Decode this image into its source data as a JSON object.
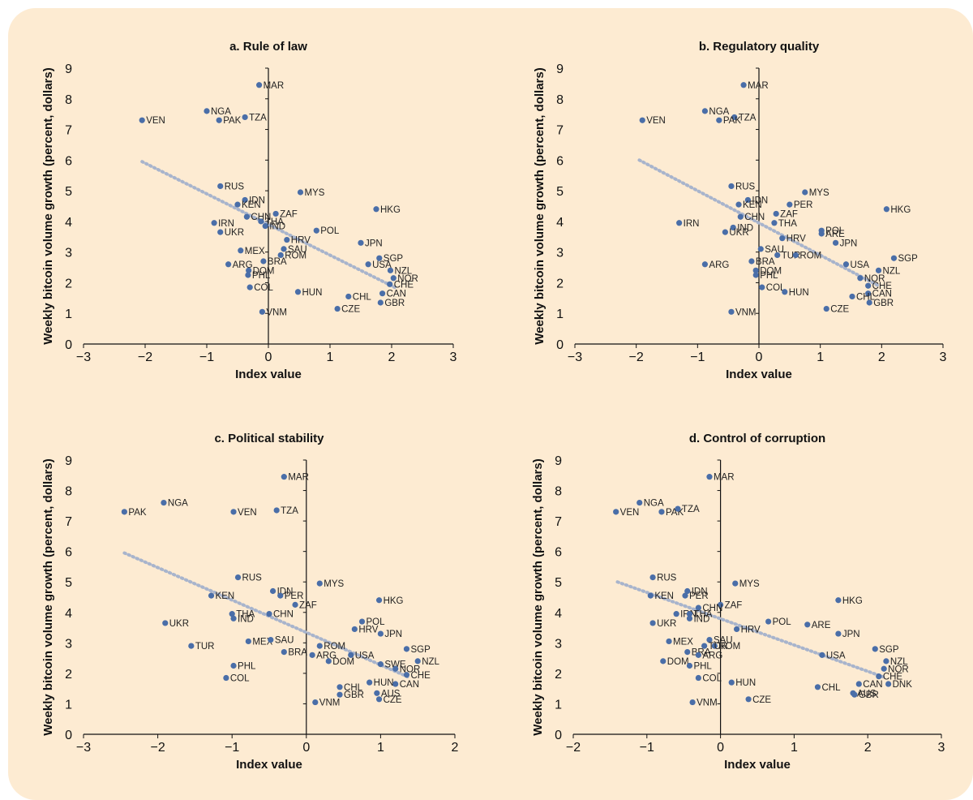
{
  "chart_data": [
    {
      "type": "scatter",
      "title": "a. Rule of law",
      "xlabel": "Index value",
      "ylabel": "Weekly bitcoin volume growth (percent, dollars)",
      "xlim": [
        -3,
        3
      ],
      "ylim": [
        0,
        9
      ],
      "xticks": [
        "−3",
        "−2",
        "−1",
        "0",
        "1",
        "2",
        "3"
      ],
      "yticks": [
        "0",
        "1",
        "2",
        "3",
        "4",
        "5",
        "6",
        "7",
        "8",
        "9"
      ],
      "trendline": [
        [
          -2.05,
          5.95
        ],
        [
          2.05,
          1.85
        ]
      ],
      "points": [
        {
          "label": "MAR",
          "x": -0.15,
          "y": 8.45
        },
        {
          "label": "NGA",
          "x": -1.0,
          "y": 7.6
        },
        {
          "label": "PAK",
          "x": -0.8,
          "y": 7.3
        },
        {
          "label": "TZA",
          "x": -0.38,
          "y": 7.4
        },
        {
          "label": "VEN",
          "x": -2.05,
          "y": 7.3
        },
        {
          "label": "RUS",
          "x": -0.78,
          "y": 5.15
        },
        {
          "label": "MYS",
          "x": 0.52,
          "y": 4.95
        },
        {
          "label": "IDN",
          "x": -0.38,
          "y": 4.7
        },
        {
          "label": "KEN",
          "x": -0.5,
          "y": 4.55
        },
        {
          "label": "HKG",
          "x": 1.75,
          "y": 4.4
        },
        {
          "label": "ZAF",
          "x": 0.12,
          "y": 4.25
        },
        {
          "label": "CHN",
          "x": -0.35,
          "y": 4.15
        },
        {
          "label": "THA",
          "x": -0.12,
          "y": 4.0
        },
        {
          "label": "IRN",
          "x": -0.88,
          "y": 3.95
        },
        {
          "label": "IND",
          "x": -0.05,
          "y": 3.85
        },
        {
          "label": "POL",
          "x": 0.78,
          "y": 3.7
        },
        {
          "label": "UKR",
          "x": -0.78,
          "y": 3.65
        },
        {
          "label": "HRV",
          "x": 0.3,
          "y": 3.4
        },
        {
          "label": "JPN",
          "x": 1.5,
          "y": 3.3
        },
        {
          "label": "MEX",
          "x": -0.45,
          "y": 3.05
        },
        {
          "label": "SAU",
          "x": 0.25,
          "y": 3.1
        },
        {
          "label": "ROM",
          "x": 0.2,
          "y": 2.9
        },
        {
          "label": "SGP",
          "x": 1.8,
          "y": 2.8
        },
        {
          "label": "BRA",
          "x": -0.08,
          "y": 2.7
        },
        {
          "label": "USA",
          "x": 1.62,
          "y": 2.6
        },
        {
          "label": "ARG",
          "x": -0.65,
          "y": 2.6
        },
        {
          "label": "NZL",
          "x": 1.98,
          "y": 2.4
        },
        {
          "label": "DOM",
          "x": -0.32,
          "y": 2.4
        },
        {
          "label": "PHL",
          "x": -0.33,
          "y": 2.25
        },
        {
          "label": "NOR",
          "x": 2.03,
          "y": 2.15
        },
        {
          "label": "CHE",
          "x": 1.97,
          "y": 1.95
        },
        {
          "label": "COL",
          "x": -0.3,
          "y": 1.85
        },
        {
          "label": "HUN",
          "x": 0.48,
          "y": 1.7
        },
        {
          "label": "CAN",
          "x": 1.85,
          "y": 1.65
        },
        {
          "label": "CHL",
          "x": 1.3,
          "y": 1.55
        },
        {
          "label": "GBR",
          "x": 1.82,
          "y": 1.35
        },
        {
          "label": "CZE",
          "x": 1.12,
          "y": 1.15
        },
        {
          "label": "VNM",
          "x": -0.1,
          "y": 1.05
        }
      ]
    },
    {
      "type": "scatter",
      "title": "b. Regulatory quality",
      "xlabel": "Index value",
      "ylabel": "Weekly bitcoin volume growth (percent, dollars)",
      "xlim": [
        -3,
        3
      ],
      "ylim": [
        0,
        9
      ],
      "xticks": [
        "−3",
        "−2",
        "−1",
        "0",
        "1",
        "2",
        "3"
      ],
      "yticks": [
        "0",
        "1",
        "2",
        "3",
        "4",
        "5",
        "6",
        "7",
        "8",
        "9"
      ],
      "trendline": [
        [
          -1.95,
          6.0
        ],
        [
          1.95,
          1.9
        ]
      ],
      "points": [
        {
          "label": "MAR",
          "x": -0.25,
          "y": 8.45
        },
        {
          "label": "NGA",
          "x": -0.88,
          "y": 7.6
        },
        {
          "label": "TZA",
          "x": -0.4,
          "y": 7.4
        },
        {
          "label": "PAK",
          "x": -0.65,
          "y": 7.3
        },
        {
          "label": "VEN",
          "x": -1.9,
          "y": 7.3
        },
        {
          "label": "RUS",
          "x": -0.45,
          "y": 5.15
        },
        {
          "label": "MYS",
          "x": 0.75,
          "y": 4.95
        },
        {
          "label": "IDN",
          "x": -0.18,
          "y": 4.7
        },
        {
          "label": "KEN",
          "x": -0.33,
          "y": 4.55
        },
        {
          "label": "PER",
          "x": 0.5,
          "y": 4.55
        },
        {
          "label": "HKG",
          "x": 2.08,
          "y": 4.4
        },
        {
          "label": "ZAF",
          "x": 0.28,
          "y": 4.25
        },
        {
          "label": "CHN",
          "x": -0.3,
          "y": 4.15
        },
        {
          "label": "THA",
          "x": 0.25,
          "y": 3.95
        },
        {
          "label": "IRN",
          "x": -1.3,
          "y": 3.95
        },
        {
          "label": "IND",
          "x": -0.42,
          "y": 3.8
        },
        {
          "label": "POL",
          "x": 1.02,
          "y": 3.7
        },
        {
          "label": "ARE",
          "x": 1.02,
          "y": 3.6
        },
        {
          "label": "UKR",
          "x": -0.55,
          "y": 3.65
        },
        {
          "label": "HRV",
          "x": 0.38,
          "y": 3.45
        },
        {
          "label": "JPN",
          "x": 1.25,
          "y": 3.3
        },
        {
          "label": "SAU",
          "x": 0.03,
          "y": 3.1
        },
        {
          "label": "TUR",
          "x": 0.3,
          "y": 2.9
        },
        {
          "label": "ROM",
          "x": 0.6,
          "y": 2.9
        },
        {
          "label": "SGP",
          "x": 2.2,
          "y": 2.8
        },
        {
          "label": "BRA",
          "x": -0.12,
          "y": 2.7
        },
        {
          "label": "USA",
          "x": 1.42,
          "y": 2.6
        },
        {
          "label": "ARG",
          "x": -0.88,
          "y": 2.6
        },
        {
          "label": "NZL",
          "x": 1.95,
          "y": 2.4
        },
        {
          "label": "DOM",
          "x": -0.05,
          "y": 2.4
        },
        {
          "label": "PHL",
          "x": -0.05,
          "y": 2.25
        },
        {
          "label": "NOR",
          "x": 1.65,
          "y": 2.15
        },
        {
          "label": "CHE",
          "x": 1.78,
          "y": 1.9
        },
        {
          "label": "COL",
          "x": 0.05,
          "y": 1.85
        },
        {
          "label": "HUN",
          "x": 0.42,
          "y": 1.7
        },
        {
          "label": "CAN",
          "x": 1.78,
          "y": 1.65
        },
        {
          "label": "CHL",
          "x": 1.52,
          "y": 1.55
        },
        {
          "label": "GBR",
          "x": 1.8,
          "y": 1.35
        },
        {
          "label": "CZE",
          "x": 1.1,
          "y": 1.15
        },
        {
          "label": "VNM",
          "x": -0.45,
          "y": 1.05
        }
      ]
    },
    {
      "type": "scatter",
      "title": "c. Political stability",
      "xlabel": "Index value",
      "ylabel": "Weekly bitcoin volume growth (percent, dollars)",
      "xlim": [
        -3,
        2
      ],
      "ylim": [
        0,
        9
      ],
      "xticks": [
        "−3",
        "−2",
        "−1",
        "0",
        "1",
        "2"
      ],
      "yticks": [
        "0",
        "1",
        "2",
        "3",
        "4",
        "5",
        "6",
        "7",
        "8",
        "9"
      ],
      "trendline": [
        [
          -2.45,
          5.95
        ],
        [
          1.4,
          1.85
        ]
      ],
      "points": [
        {
          "label": "MAR",
          "x": -0.3,
          "y": 8.45
        },
        {
          "label": "NGA",
          "x": -1.92,
          "y": 7.6
        },
        {
          "label": "PAK",
          "x": -2.45,
          "y": 7.3
        },
        {
          "label": "VEN",
          "x": -0.98,
          "y": 7.3
        },
        {
          "label": "TZA",
          "x": -0.4,
          "y": 7.35
        },
        {
          "label": "RUS",
          "x": -0.92,
          "y": 5.15
        },
        {
          "label": "MYS",
          "x": 0.18,
          "y": 4.95
        },
        {
          "label": "IDN",
          "x": -0.45,
          "y": 4.7
        },
        {
          "label": "KEN",
          "x": -1.28,
          "y": 4.55
        },
        {
          "label": "PER",
          "x": -0.35,
          "y": 4.55
        },
        {
          "label": "HKG",
          "x": 0.98,
          "y": 4.4
        },
        {
          "label": "ZAF",
          "x": -0.15,
          "y": 4.25
        },
        {
          "label": "THA",
          "x": -1.0,
          "y": 3.95
        },
        {
          "label": "CHN",
          "x": -0.5,
          "y": 3.95
        },
        {
          "label": "IND",
          "x": -0.98,
          "y": 3.8
        },
        {
          "label": "POL",
          "x": 0.75,
          "y": 3.7
        },
        {
          "label": "UKR",
          "x": -1.9,
          "y": 3.65
        },
        {
          "label": "HRV",
          "x": 0.65,
          "y": 3.45
        },
        {
          "label": "JPN",
          "x": 1.0,
          "y": 3.3
        },
        {
          "label": "MEX",
          "x": -0.78,
          "y": 3.05
        },
        {
          "label": "SAU",
          "x": -0.48,
          "y": 3.1
        },
        {
          "label": "TUR",
          "x": -1.55,
          "y": 2.9
        },
        {
          "label": "ROM",
          "x": 0.18,
          "y": 2.9
        },
        {
          "label": "SGP",
          "x": 1.35,
          "y": 2.8
        },
        {
          "label": "BRA",
          "x": -0.3,
          "y": 2.7
        },
        {
          "label": "ARG",
          "x": 0.08,
          "y": 2.6
        },
        {
          "label": "USA",
          "x": 0.6,
          "y": 2.6
        },
        {
          "label": "NZL",
          "x": 1.5,
          "y": 2.4
        },
        {
          "label": "DOM",
          "x": 0.3,
          "y": 2.4
        },
        {
          "label": "SWE",
          "x": 1.0,
          "y": 2.3
        },
        {
          "label": "PHL",
          "x": -0.98,
          "y": 2.25
        },
        {
          "label": "NOR",
          "x": 1.2,
          "y": 2.15
        },
        {
          "label": "CHE",
          "x": 1.35,
          "y": 1.95
        },
        {
          "label": "COL",
          "x": -1.08,
          "y": 1.85
        },
        {
          "label": "HUN",
          "x": 0.85,
          "y": 1.7
        },
        {
          "label": "CAN",
          "x": 1.2,
          "y": 1.65
        },
        {
          "label": "CHL",
          "x": 0.45,
          "y": 1.55
        },
        {
          "label": "AUS",
          "x": 0.95,
          "y": 1.35
        },
        {
          "label": "GBR",
          "x": 0.45,
          "y": 1.3
        },
        {
          "label": "CZE",
          "x": 0.98,
          "y": 1.15
        },
        {
          "label": "VNM",
          "x": 0.12,
          "y": 1.05
        }
      ]
    },
    {
      "type": "scatter",
      "title": "d. Control of corruption",
      "xlabel": "Index value",
      "ylabel": "Weekly bitcoin volume growth (percent, dollars)",
      "xlim": [
        -2,
        3
      ],
      "ylim": [
        0,
        9
      ],
      "xticks": [
        "−2",
        "−1",
        "0",
        "1",
        "2",
        "3"
      ],
      "yticks": [
        "0",
        "1",
        "2",
        "3",
        "4",
        "5",
        "6",
        "7",
        "8",
        "9"
      ],
      "trendline": [
        [
          -1.4,
          5.0
        ],
        [
          2.25,
          1.85
        ]
      ],
      "points": [
        {
          "label": "MAR",
          "x": -0.15,
          "y": 8.45
        },
        {
          "label": "NGA",
          "x": -1.1,
          "y": 7.6
        },
        {
          "label": "VEN",
          "x": -1.42,
          "y": 7.3
        },
        {
          "label": "PAK",
          "x": -0.8,
          "y": 7.3
        },
        {
          "label": "TZA",
          "x": -0.58,
          "y": 7.4
        },
        {
          "label": "RUS",
          "x": -0.92,
          "y": 5.15
        },
        {
          "label": "MYS",
          "x": 0.2,
          "y": 4.95
        },
        {
          "label": "IDN",
          "x": -0.45,
          "y": 4.7
        },
        {
          "label": "KEN",
          "x": -0.95,
          "y": 4.55
        },
        {
          "label": "PER",
          "x": -0.48,
          "y": 4.55
        },
        {
          "label": "HKG",
          "x": 1.6,
          "y": 4.4
        },
        {
          "label": "ZAF",
          "x": 0.0,
          "y": 4.25
        },
        {
          "label": "CHN",
          "x": -0.3,
          "y": 4.15
        },
        {
          "label": "IRN",
          "x": -0.6,
          "y": 3.95
        },
        {
          "label": "THA",
          "x": -0.42,
          "y": 3.95
        },
        {
          "label": "IND",
          "x": -0.42,
          "y": 3.8
        },
        {
          "label": "POL",
          "x": 0.65,
          "y": 3.7
        },
        {
          "label": "UKR",
          "x": -0.92,
          "y": 3.65
        },
        {
          "label": "ARE",
          "x": 1.18,
          "y": 3.6
        },
        {
          "label": "HRV",
          "x": 0.22,
          "y": 3.45
        },
        {
          "label": "JPN",
          "x": 1.6,
          "y": 3.3
        },
        {
          "label": "MEX",
          "x": -0.7,
          "y": 3.05
        },
        {
          "label": "SAU",
          "x": -0.15,
          "y": 3.1
        },
        {
          "label": "ROM",
          "x": -0.08,
          "y": 2.9
        },
        {
          "label": "TUR",
          "x": -0.22,
          "y": 2.9
        },
        {
          "label": "SGP",
          "x": 2.1,
          "y": 2.8
        },
        {
          "label": "BRA",
          "x": -0.45,
          "y": 2.7
        },
        {
          "label": "ARG",
          "x": -0.3,
          "y": 2.6
        },
        {
          "label": "USA",
          "x": 1.38,
          "y": 2.6
        },
        {
          "label": "NZL",
          "x": 2.25,
          "y": 2.4
        },
        {
          "label": "DOM",
          "x": -0.78,
          "y": 2.4
        },
        {
          "label": "PHL",
          "x": -0.42,
          "y": 2.25
        },
        {
          "label": "NOR",
          "x": 2.22,
          "y": 2.15
        },
        {
          "label": "CHE",
          "x": 2.15,
          "y": 1.9
        },
        {
          "label": "COL",
          "x": -0.3,
          "y": 1.85
        },
        {
          "label": "HUN",
          "x": 0.15,
          "y": 1.7
        },
        {
          "label": "CAN",
          "x": 1.88,
          "y": 1.65
        },
        {
          "label": "DNK",
          "x": 2.28,
          "y": 1.65
        },
        {
          "label": "CHL",
          "x": 1.32,
          "y": 1.55
        },
        {
          "label": "AUS",
          "x": 1.8,
          "y": 1.35
        },
        {
          "label": "GBR",
          "x": 1.82,
          "y": 1.3
        },
        {
          "label": "CZE",
          "x": 0.38,
          "y": 1.15
        },
        {
          "label": "VNM",
          "x": -0.38,
          "y": 1.05
        }
      ]
    }
  ],
  "colors": {
    "background": "#fdebd2",
    "point": "#4a6ea8",
    "trendline": "#a8b4cc",
    "axis": "#111111"
  }
}
